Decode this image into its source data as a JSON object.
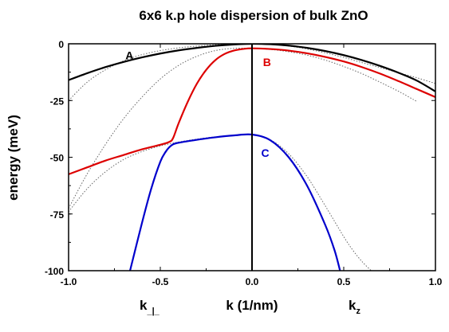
{
  "chart_data": {
    "type": "line",
    "title": "6x6 k.p hole dispersion of bulk ZnO",
    "xlabel": "k (1/nm)",
    "ylabel": "energy (meV)",
    "x_left_label": "k",
    "x_left_label_sub": "_|_",
    "x_right_label": "k",
    "x_right_label_sub": "z",
    "xlim": [
      -1.0,
      1.0
    ],
    "ylim": [
      -100,
      0
    ],
    "xticks": [
      -1.0,
      -0.5,
      0.0,
      0.5,
      1.0
    ],
    "xtick_labels": [
      "-1.0",
      "-0.5",
      "0.0",
      "0.5",
      "1.0"
    ],
    "yticks": [
      0,
      -25,
      -50,
      -75,
      -100
    ],
    "ytick_labels": [
      "0",
      "-25",
      "-50",
      "-75",
      "-100"
    ],
    "grid": false,
    "legend": "none",
    "series": [
      {
        "name": "A",
        "color": "#000000",
        "style": "solid",
        "label_at": [
          -0.69,
          -5
        ],
        "x": [
          -1.0,
          -0.9,
          -0.8,
          -0.7,
          -0.6,
          -0.5,
          -0.4,
          -0.3,
          -0.2,
          -0.1,
          0.0,
          0.1,
          0.2,
          0.3,
          0.4,
          0.5,
          0.6,
          0.7,
          0.8,
          0.9,
          1.0
        ],
        "y": [
          -16.0,
          -13.0,
          -10.3,
          -8.0,
          -6.0,
          -4.3,
          -2.9,
          -1.8,
          -0.9,
          -0.3,
          0.0,
          -0.2,
          -0.8,
          -1.8,
          -3.2,
          -5.0,
          -7.2,
          -9.8,
          -12.8,
          -16.3,
          -21.0
        ]
      },
      {
        "name": "B",
        "color": "#dd0000",
        "style": "solid",
        "label_at": [
          0.06,
          -8
        ],
        "x": [
          -1.0,
          -0.9,
          -0.8,
          -0.7,
          -0.6,
          -0.5,
          -0.45,
          -0.43,
          -0.4,
          -0.35,
          -0.3,
          -0.25,
          -0.2,
          -0.15,
          -0.1,
          -0.05,
          0.0,
          0.1,
          0.2,
          0.3,
          0.4,
          0.5,
          0.6,
          0.7,
          0.8,
          0.9,
          1.0
        ],
        "y": [
          -57.5,
          -54.5,
          -51.5,
          -49.0,
          -46.5,
          -44.5,
          -43.2,
          -41.5,
          -35.0,
          -25.5,
          -17.5,
          -11.5,
          -7.2,
          -4.5,
          -3.0,
          -2.3,
          -2.0,
          -2.3,
          -3.0,
          -4.2,
          -5.8,
          -7.8,
          -10.3,
          -13.2,
          -16.5,
          -20.0,
          -23.5
        ]
      },
      {
        "name": "C",
        "color": "#0000cc",
        "style": "solid",
        "label_at": [
          0.05,
          -48
        ],
        "x": [
          -0.665,
          -0.6,
          -0.55,
          -0.5,
          -0.47,
          -0.45,
          -0.43,
          -0.4,
          -0.3,
          -0.2,
          -0.1,
          0.0,
          0.1,
          0.2,
          0.3,
          0.4,
          0.45,
          0.48
        ],
        "y": [
          -100.0,
          -79.0,
          -64.0,
          -52.0,
          -47.5,
          -45.5,
          -44.3,
          -43.6,
          -42.3,
          -41.2,
          -40.4,
          -40.0,
          -42.5,
          -50.0,
          -62.5,
          -80.0,
          -91.0,
          -100.0
        ]
      },
      {
        "color": "#666666",
        "style": "dotted",
        "x": [
          -1.0,
          -0.9,
          -0.8,
          -0.7,
          -0.6,
          -0.5,
          -0.4,
          -0.3,
          -0.2,
          -0.1,
          0.0
        ],
        "y": [
          -72.5,
          -57.5,
          -44.5,
          -33.0,
          -23.5,
          -15.5,
          -9.5,
          -5.5,
          -3.0,
          -2.0,
          -2.0
        ]
      },
      {
        "color": "#666666",
        "style": "dotted",
        "x": [
          -1.0,
          -0.9,
          -0.8,
          -0.7,
          -0.6,
          -0.5,
          -0.4,
          -0.3,
          -0.2,
          -0.1,
          0.0
        ],
        "y": [
          -74.0,
          -64.0,
          -56.5,
          -51.0,
          -47.5,
          -45.0,
          -43.3,
          -42.0,
          -41.0,
          -40.3,
          -40.0
        ]
      },
      {
        "color": "#666666",
        "style": "dotted",
        "x": [
          -1.0,
          -0.9,
          -0.8,
          -0.7,
          -0.6,
          -0.5,
          -0.4,
          -0.3,
          -0.2,
          -0.1,
          0.0
        ],
        "y": [
          -25.0,
          -17.0,
          -11.5,
          -7.5,
          -4.8,
          -3.0,
          -1.8,
          -1.0,
          -0.4,
          -0.1,
          0.0
        ]
      },
      {
        "color": "#666666",
        "style": "dotted",
        "x": [
          0.0,
          0.1,
          0.2,
          0.3,
          0.4,
          0.5,
          0.6,
          0.7,
          0.8,
          0.9,
          1.0
        ],
        "y": [
          0.0,
          -0.3,
          -1.0,
          -2.3,
          -4.0,
          -6.0,
          -8.3,
          -10.5,
          -12.8,
          -15.0,
          -17.5
        ]
      },
      {
        "color": "#666666",
        "style": "dotted",
        "x": [
          0.0,
          0.1,
          0.2,
          0.3,
          0.4,
          0.5,
          0.6,
          0.7,
          0.8,
          0.9
        ],
        "y": [
          -2.0,
          -2.5,
          -3.5,
          -5.0,
          -7.2,
          -10.0,
          -13.2,
          -17.0,
          -21.0,
          -25.5
        ]
      },
      {
        "color": "#666666",
        "style": "dotted",
        "x": [
          0.0,
          0.1,
          0.2,
          0.3,
          0.4,
          0.5,
          0.55,
          0.6,
          0.65
        ],
        "y": [
          -40.0,
          -42.3,
          -48.5,
          -58.5,
          -71.5,
          -85.0,
          -91.0,
          -96.0,
          -100.0
        ]
      }
    ]
  }
}
